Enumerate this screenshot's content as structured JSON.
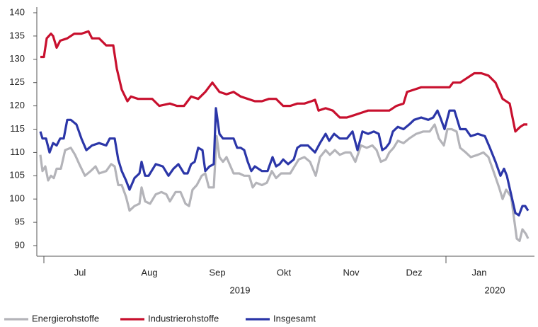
{
  "chart_data": {
    "type": "line",
    "ylim": [
      90,
      140
    ],
    "yticks": [
      90,
      95,
      100,
      105,
      110,
      115,
      120,
      125,
      130,
      135,
      140
    ],
    "xlim": [
      0,
      690
    ],
    "xticks": [
      {
        "value": 56,
        "label": "Jul"
      },
      {
        "value": 154,
        "label": "Aug"
      },
      {
        "value": 250,
        "label": "Sep"
      },
      {
        "value": 344,
        "label": "Okt"
      },
      {
        "value": 439,
        "label": "Nov"
      },
      {
        "value": 528,
        "label": "Dez"
      },
      {
        "value": 620,
        "label": "Jan"
      }
    ],
    "year_labels": [
      {
        "value": 282,
        "label": "2019"
      },
      {
        "value": 642,
        "label": "2020"
      }
    ],
    "series": [
      {
        "name": "Energierohstoffe",
        "color": "#b4b4b9",
        "x": [
          0,
          3,
          7,
          11,
          15,
          19,
          23,
          29,
          35,
          43,
          49,
          55,
          63,
          71,
          78,
          83,
          93,
          100,
          105,
          110,
          115,
          121,
          126,
          133,
          140,
          143,
          148,
          155,
          163,
          171,
          178,
          183,
          191,
          198,
          205,
          210,
          215,
          221,
          228,
          233,
          238,
          245,
          249,
          253,
          258,
          263,
          273,
          281,
          288,
          295,
          300,
          305,
          313,
          320,
          327,
          333,
          340,
          347,
          353,
          359,
          365,
          373,
          381,
          389,
          395,
          403,
          409,
          416,
          423,
          431,
          438,
          445,
          453,
          461,
          469,
          475,
          481,
          488,
          493,
          499,
          505,
          513,
          521,
          531,
          541,
          550,
          557,
          563,
          570,
          575,
          581,
          588,
          593,
          601,
          608,
          618,
          626,
          633,
          640,
          648,
          653,
          658,
          665,
          669,
          673,
          677,
          681,
          686,
          689
        ],
        "values": [
          109.5,
          106,
          107,
          104,
          105,
          104.5,
          106.5,
          106.5,
          110.5,
          111,
          109.5,
          107.5,
          105,
          106,
          107,
          105.5,
          106,
          107.5,
          107,
          103,
          103,
          100.5,
          97.5,
          98.5,
          99,
          102.5,
          99.5,
          99,
          101,
          101.5,
          101,
          99.5,
          101.5,
          101.5,
          99,
          98.5,
          102,
          103,
          105,
          105.5,
          102.5,
          102.5,
          113.5,
          109,
          108,
          109,
          105.5,
          105.5,
          105,
          105,
          102.5,
          103.5,
          103,
          103.5,
          106,
          104.5,
          105.5,
          105.5,
          105.5,
          107,
          108.5,
          109,
          108,
          105,
          109,
          110.5,
          109.5,
          110.5,
          109.5,
          110,
          110,
          108,
          111.5,
          111,
          111.5,
          110.5,
          108,
          108.5,
          110,
          111,
          112.5,
          112,
          113,
          114,
          114.5,
          114.5,
          116,
          113,
          111.5,
          115,
          115,
          114.5,
          111,
          110,
          109,
          109.5,
          110,
          109,
          106,
          102.5,
          100,
          102,
          100.5,
          96,
          91.5,
          91,
          93.5,
          92.5,
          91.5
        ]
      },
      {
        "name": "Industrierohstoffe",
        "color": "#c8102e",
        "x": [
          0,
          5,
          9,
          15,
          18,
          23,
          28,
          38,
          48,
          58,
          68,
          73,
          83,
          93,
          103,
          108,
          115,
          123,
          128,
          138,
          148,
          158,
          168,
          183,
          193,
          203,
          213,
          223,
          233,
          243,
          253,
          263,
          273,
          283,
          293,
          303,
          313,
          323,
          333,
          343,
          353,
          363,
          373,
          383,
          388,
          393,
          403,
          413,
          423,
          433,
          443,
          453,
          463,
          473,
          483,
          493,
          503,
          513,
          518,
          528,
          538,
          553,
          563,
          578,
          583,
          593,
          603,
          613,
          623,
          633,
          643,
          653,
          663,
          671,
          678,
          683,
          688
        ],
        "values": [
          130.5,
          130.5,
          134.5,
          135.5,
          135,
          132.5,
          134,
          134.5,
          135.5,
          135.5,
          136,
          134.5,
          134.5,
          133,
          133,
          128,
          123.5,
          121,
          122,
          121.5,
          121.5,
          121.5,
          120,
          120.5,
          120,
          120,
          122,
          121.5,
          123,
          125,
          123,
          122.5,
          123,
          122,
          121.5,
          121,
          121,
          121.5,
          121.5,
          120,
          120,
          120.5,
          120.5,
          121,
          121.3,
          119,
          119.5,
          119,
          117.5,
          117.5,
          118,
          118.5,
          119,
          119,
          119,
          119,
          120,
          120.5,
          123,
          123.5,
          124,
          124,
          124,
          124,
          125,
          125,
          126,
          127,
          127,
          126.5,
          125,
          121.5,
          120.5,
          114.5,
          115.5,
          116,
          116
        ]
      },
      {
        "name": "Insgesamt",
        "color": "#2b36a8",
        "x": [
          0,
          3,
          8,
          13,
          18,
          23,
          28,
          33,
          38,
          43,
          51,
          58,
          65,
          73,
          83,
          93,
          98,
          105,
          110,
          115,
          121,
          126,
          133,
          140,
          143,
          148,
          153,
          163,
          173,
          181,
          188,
          195,
          203,
          208,
          213,
          218,
          223,
          229,
          233,
          239,
          245,
          248,
          253,
          258,
          263,
          273,
          278,
          283,
          288,
          293,
          298,
          303,
          313,
          321,
          328,
          333,
          338,
          343,
          350,
          358,
          363,
          368,
          378,
          388,
          395,
          403,
          408,
          415,
          423,
          433,
          441,
          448,
          455,
          463,
          471,
          478,
          483,
          488,
          493,
          498,
          505,
          513,
          521,
          528,
          538,
          548,
          555,
          561,
          565,
          571,
          578,
          585,
          593,
          601,
          608,
          618,
          628,
          635,
          643,
          650,
          655,
          659,
          665,
          671,
          676,
          681,
          685,
          689
        ],
        "values": [
          114.5,
          113,
          113,
          110,
          112,
          111.5,
          113,
          113,
          117,
          117,
          116,
          113,
          110.5,
          111.5,
          112,
          111.5,
          113,
          113,
          108.5,
          106,
          104,
          102,
          104.5,
          105.5,
          108,
          105,
          105,
          107.5,
          107,
          105,
          106.5,
          107.5,
          105.5,
          105.5,
          107.5,
          108,
          111,
          110.5,
          106,
          107,
          107.5,
          119.5,
          114,
          113,
          113,
          113,
          111,
          111,
          110.5,
          108,
          106,
          107,
          106,
          106,
          109,
          107,
          107.5,
          108.5,
          107.5,
          108.5,
          111,
          111.5,
          111.5,
          110,
          112,
          114,
          112.5,
          114,
          113,
          113,
          114.5,
          110.5,
          114.5,
          114,
          114.5,
          114,
          110.5,
          111,
          112,
          114.5,
          115.5,
          115,
          116,
          117,
          117.5,
          117,
          117.5,
          119,
          117.5,
          115,
          119,
          119,
          115,
          115,
          113.5,
          114,
          113.5,
          111,
          108,
          105,
          106.5,
          105,
          101,
          97,
          96.5,
          98.5,
          98.5,
          97.5
        ]
      }
    ]
  }
}
